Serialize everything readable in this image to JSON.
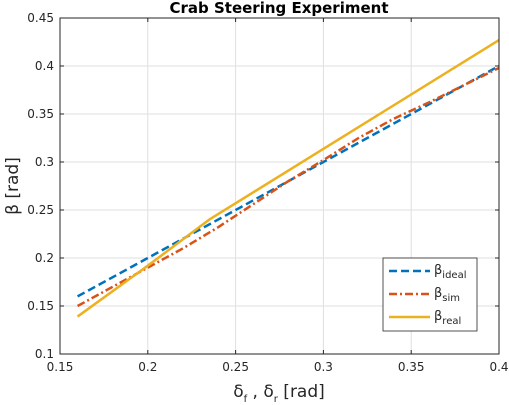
{
  "chart_data": {
    "type": "line",
    "title": "Crab Steering Experiment",
    "xlabel": {
      "main1": "δ",
      "sub1": "f",
      "mid": " , δ",
      "sub2": "r",
      "tail": " [rad]"
    },
    "ylabel": "β [rad]",
    "xlim": [
      0.15,
      0.4
    ],
    "ylim": [
      0.1,
      0.45
    ],
    "x_ticks": [
      0.15,
      0.2,
      0.25,
      0.3,
      0.35,
      0.4
    ],
    "y_ticks": [
      0.1,
      0.15,
      0.2,
      0.25,
      0.3,
      0.35,
      0.4,
      0.45
    ],
    "x_tick_labels": [
      "0.15",
      "0.2",
      "0.25",
      "0.3",
      "0.35",
      "0.4"
    ],
    "y_tick_labels": [
      "0.1",
      "0.15",
      "0.2",
      "0.25",
      "0.3",
      "0.35",
      "0.4",
      "0.45"
    ],
    "grid": true,
    "legend_position": "bottom-right",
    "series": [
      {
        "name": "β_ideal",
        "label_main": "β",
        "label_sub": "ideal",
        "color": "#0072BD",
        "style": "dashed",
        "x": [
          0.16,
          0.4
        ],
        "y": [
          0.16,
          0.4
        ]
      },
      {
        "name": "β_sim",
        "label_main": "β",
        "label_sub": "sim",
        "color": "#D95319",
        "style": "dashdot",
        "x": [
          0.16,
          0.18,
          0.2,
          0.22,
          0.24,
          0.26,
          0.28,
          0.3,
          0.32,
          0.34,
          0.36,
          0.38,
          0.4
        ],
        "y": [
          0.15,
          0.17,
          0.19,
          0.21,
          0.232,
          0.256,
          0.28,
          0.302,
          0.325,
          0.345,
          0.362,
          0.38,
          0.398
        ]
      },
      {
        "name": "β_real",
        "label_main": "β",
        "label_sub": "real",
        "color": "#EDB120",
        "style": "solid",
        "x": [
          0.16,
          0.2,
          0.235,
          0.4
        ],
        "y": [
          0.139,
          0.192,
          0.24,
          0.427
        ]
      }
    ]
  }
}
